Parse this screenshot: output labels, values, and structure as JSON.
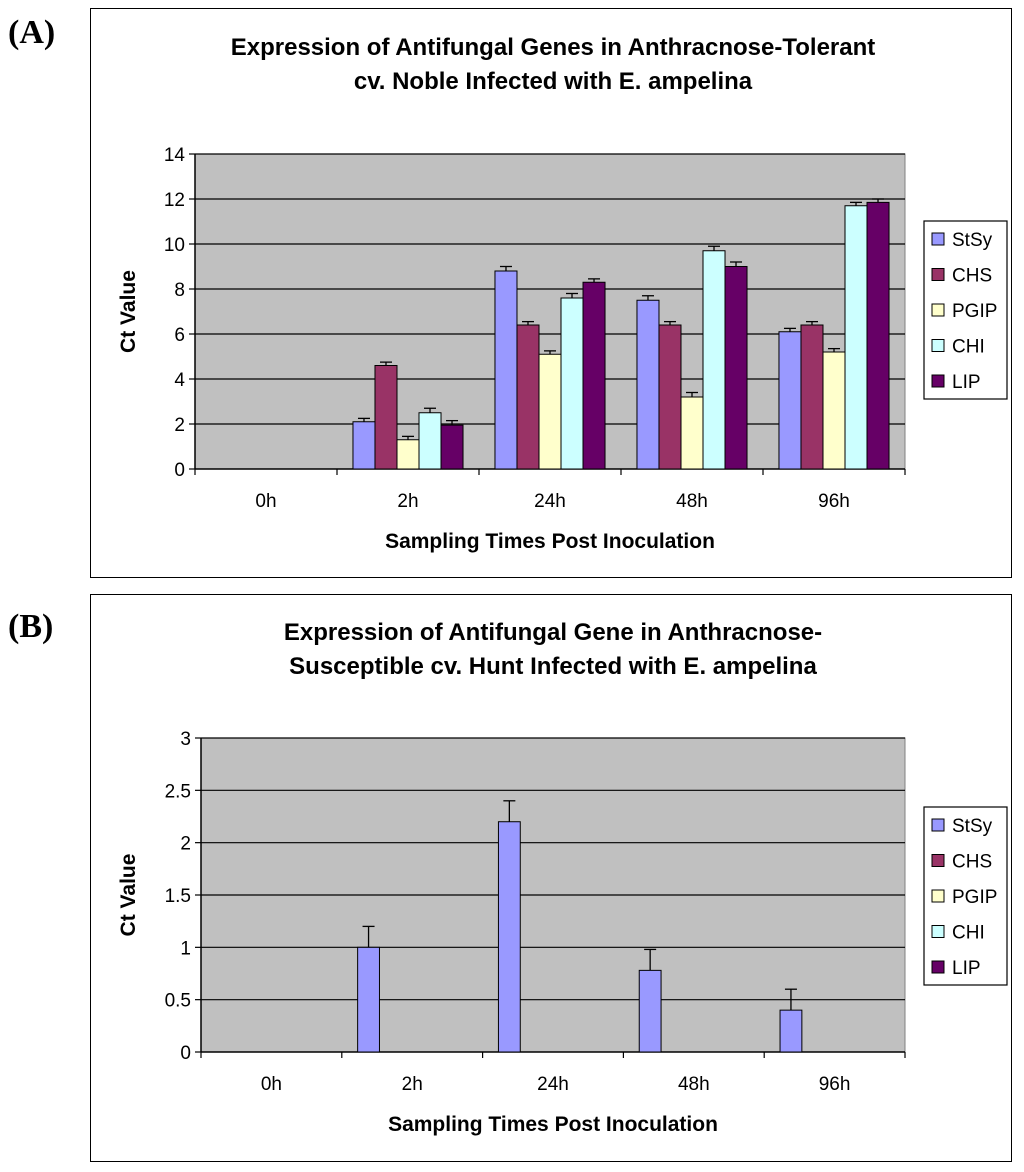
{
  "panels": [
    {
      "label": "(A)"
    },
    {
      "label": "(B)"
    }
  ],
  "colors": {
    "StSy": "#9999ff",
    "CHS": "#993366",
    "PGIP": "#ffffcc",
    "CHI": "#ccffff",
    "LIP": "#660066",
    "plot_bg": "#c0c0c0"
  },
  "chart_data": [
    {
      "type": "bar",
      "title_lines": [
        "Expression of Antifungal Genes in Anthracnose-Tolerant",
        "cv. Noble Infected with E. ampelina"
      ],
      "xlabel": "Sampling Times Post Inoculation",
      "ylabel": "Ct Value",
      "categories": [
        "0h",
        "2h",
        "24h",
        "48h",
        "96h"
      ],
      "ylim": [
        0,
        14
      ],
      "yticks": [
        0,
        2,
        4,
        6,
        8,
        10,
        12,
        14
      ],
      "ytick_labels": [
        "0",
        "2",
        "4",
        "6",
        "8",
        "10",
        "12",
        "14"
      ],
      "grid": true,
      "legend_position": "right",
      "series": [
        {
          "name": "StSy",
          "values": [
            0,
            2.1,
            8.8,
            7.5,
            6.1
          ],
          "errors": [
            0,
            0.15,
            0.2,
            0.2,
            0.15
          ]
        },
        {
          "name": "CHS",
          "values": [
            0,
            4.6,
            6.4,
            6.4,
            6.4
          ],
          "errors": [
            0,
            0.15,
            0.15,
            0.15,
            0.15
          ]
        },
        {
          "name": "PGIP",
          "values": [
            0,
            1.3,
            5.1,
            3.2,
            5.2
          ],
          "errors": [
            0,
            0.15,
            0.15,
            0.2,
            0.15
          ]
        },
        {
          "name": "CHI",
          "values": [
            0,
            2.5,
            7.6,
            9.7,
            11.7
          ],
          "errors": [
            0,
            0.2,
            0.2,
            0.2,
            0.15
          ]
        },
        {
          "name": "LIP",
          "values": [
            0,
            1.95,
            8.3,
            9.0,
            11.85
          ],
          "errors": [
            0,
            0.2,
            0.15,
            0.2,
            0.15
          ]
        }
      ]
    },
    {
      "type": "bar",
      "title_lines": [
        "Expression of Antifungal Gene in Anthracnose-",
        "Susceptible cv. Hunt Infected with E. ampelina"
      ],
      "xlabel": "Sampling Times Post Inoculation",
      "ylabel": "Ct Value",
      "categories": [
        "0h",
        "2h",
        "24h",
        "48h",
        "96h"
      ],
      "ylim": [
        0,
        3
      ],
      "yticks": [
        0,
        0.5,
        1,
        1.5,
        2,
        2.5,
        3
      ],
      "ytick_labels": [
        "0",
        "0.5",
        "1",
        "1.5",
        "2",
        "2.5",
        "3"
      ],
      "grid": true,
      "legend_position": "right",
      "series": [
        {
          "name": "StSy",
          "values": [
            0,
            1.0,
            2.2,
            0.78,
            0.4
          ],
          "errors": [
            0,
            0.2,
            0.2,
            0.2,
            0.2
          ]
        },
        {
          "name": "CHS",
          "values": [
            0,
            0,
            0,
            0,
            0
          ],
          "errors": [
            0,
            0,
            0,
            0,
            0
          ]
        },
        {
          "name": "PGIP",
          "values": [
            0,
            0,
            0,
            0,
            0
          ],
          "errors": [
            0,
            0,
            0,
            0,
            0
          ]
        },
        {
          "name": "CHI",
          "values": [
            0,
            0,
            0,
            0,
            0
          ],
          "errors": [
            0,
            0,
            0,
            0,
            0
          ]
        },
        {
          "name": "LIP",
          "values": [
            0,
            0,
            0,
            0,
            0
          ],
          "errors": [
            0,
            0,
            0,
            0,
            0
          ]
        }
      ]
    }
  ]
}
